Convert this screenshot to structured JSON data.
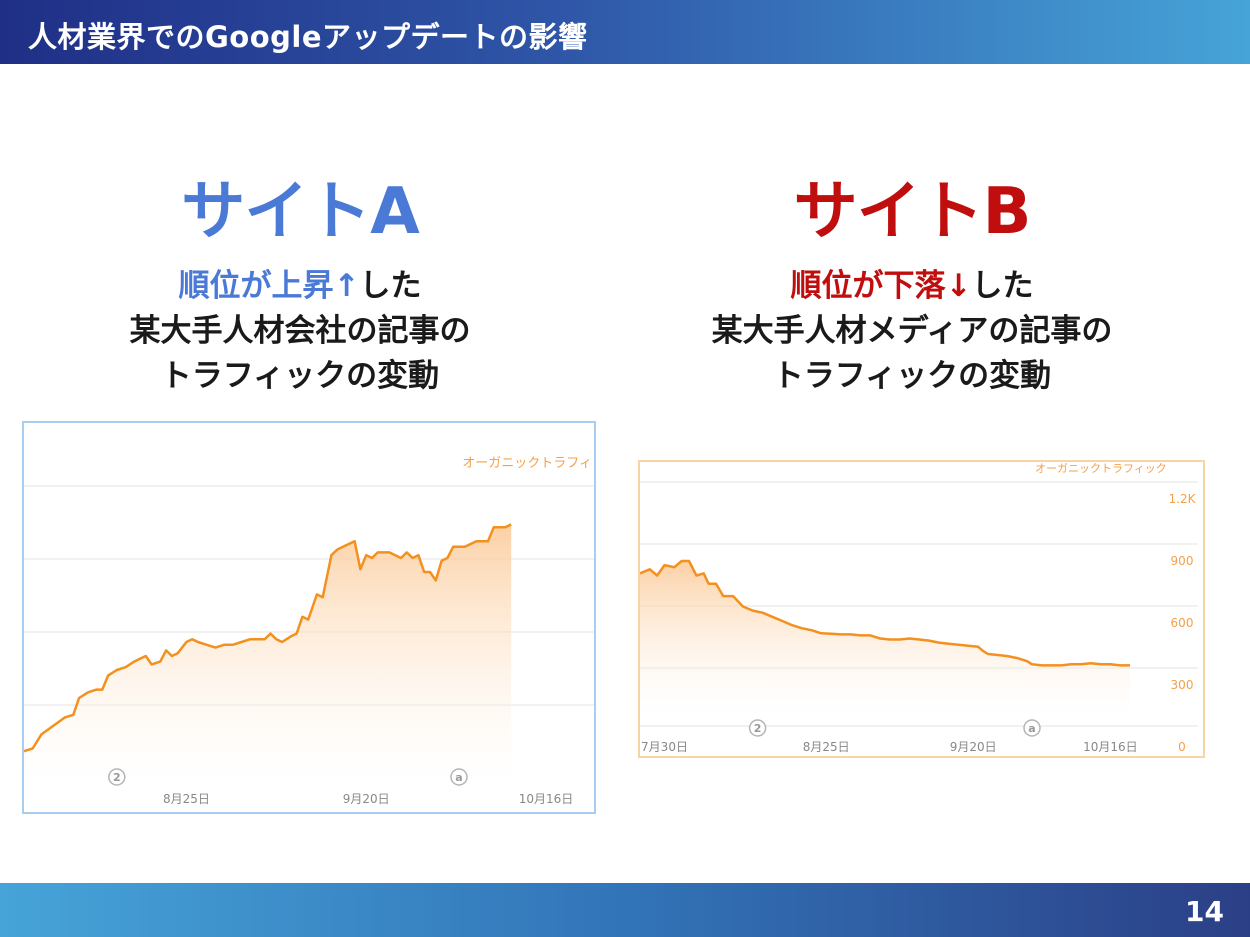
{
  "header": {
    "title": "人材業界でのGoogleアップデートの影響"
  },
  "footer": {
    "page_number": "14"
  },
  "site_a": {
    "title": "サイトA",
    "desc_highlight": "順位が上昇↑",
    "desc_rest1": "した",
    "desc_line2": "某大手人材会社の記事の",
    "desc_line3": "トラフィックの変動"
  },
  "site_b": {
    "title": "サイトB",
    "desc_highlight": "順位が下落↓",
    "desc_rest1": "した",
    "desc_line2": "某大手人材メディアの記事の",
    "desc_line3": "トラフィックの変動"
  },
  "colors": {
    "site_a_accent": "#4a79d6",
    "site_b_accent": "#c00d0d",
    "line": "#f3901e",
    "fill_top": "#fbc895",
    "label_orange": "#f3a04a",
    "axis_text": "#888888"
  },
  "chart_data": [
    {
      "type": "area",
      "legend": "オーガニックトラフィ",
      "xlim": [
        0,
        100
      ],
      "ylim": [
        0,
        100
      ],
      "x_ticks": [
        {
          "x": 28,
          "label": "8月25日"
        },
        {
          "x": 59,
          "label": "9月20日"
        },
        {
          "x": 90,
          "label": "10月16日"
        }
      ],
      "markers": [
        {
          "x": 16,
          "label": "2"
        },
        {
          "x": 75,
          "label": "a"
        }
      ],
      "values": [
        [
          0,
          6
        ],
        [
          1.5,
          7
        ],
        [
          3,
          12
        ],
        [
          5,
          15
        ],
        [
          7,
          18
        ],
        [
          8.5,
          19
        ],
        [
          9.5,
          25
        ],
        [
          11,
          27
        ],
        [
          12.5,
          28
        ],
        [
          13.5,
          28
        ],
        [
          14.5,
          33
        ],
        [
          16,
          35
        ],
        [
          17.5,
          36
        ],
        [
          19,
          38
        ],
        [
          20,
          39
        ],
        [
          21,
          40
        ],
        [
          22,
          37
        ],
        [
          23.5,
          38
        ],
        [
          24.5,
          42
        ],
        [
          25.5,
          40
        ],
        [
          26.5,
          41
        ],
        [
          28,
          45
        ],
        [
          29,
          46
        ],
        [
          30,
          45
        ],
        [
          31.5,
          44
        ],
        [
          33,
          43
        ],
        [
          34.5,
          44
        ],
        [
          36,
          44
        ],
        [
          37.5,
          45
        ],
        [
          39,
          46
        ],
        [
          40.5,
          46
        ],
        [
          41.5,
          46
        ],
        [
          42.5,
          48
        ],
        [
          43.5,
          46
        ],
        [
          44.5,
          45
        ],
        [
          46,
          47
        ],
        [
          47,
          48
        ],
        [
          48,
          54
        ],
        [
          49,
          53
        ],
        [
          50.5,
          62
        ],
        [
          51.5,
          61
        ],
        [
          53,
          76
        ],
        [
          54,
          78
        ],
        [
          55,
          79
        ],
        [
          56,
          80
        ],
        [
          57,
          81
        ],
        [
          58,
          71
        ],
        [
          59,
          76
        ],
        [
          60,
          75
        ],
        [
          61,
          77
        ],
        [
          62,
          77
        ],
        [
          63,
          77
        ],
        [
          64,
          76
        ],
        [
          65,
          75
        ],
        [
          66,
          77
        ],
        [
          67,
          75
        ],
        [
          68,
          76
        ],
        [
          69,
          70
        ],
        [
          70,
          70
        ],
        [
          71,
          67
        ],
        [
          72,
          74
        ],
        [
          73,
          75
        ],
        [
          74,
          79
        ],
        [
          75,
          79
        ],
        [
          76,
          79
        ],
        [
          77,
          80
        ],
        [
          78,
          81
        ],
        [
          79,
          81
        ],
        [
          80,
          81
        ],
        [
          81,
          86
        ],
        [
          82,
          86
        ],
        [
          83,
          86
        ],
        [
          84,
          87
        ]
      ]
    },
    {
      "type": "area",
      "legend": "オーガニックトラフィック",
      "ylim": [
        0,
        1200
      ],
      "y_ticks": [
        {
          "value": 0,
          "label": "0"
        },
        {
          "value": 300,
          "label": "300"
        },
        {
          "value": 600,
          "label": "600"
        },
        {
          "value": 900,
          "label": "900"
        },
        {
          "value": 1200,
          "label": "1.2K"
        }
      ],
      "xlim": [
        0,
        100
      ],
      "x_ticks": [
        {
          "x": 5,
          "label": "7月30日"
        },
        {
          "x": 38,
          "label": "8月25日"
        },
        {
          "x": 68,
          "label": "9月20日"
        },
        {
          "x": 96,
          "label": "10月16日"
        }
      ],
      "markers": [
        {
          "x": 24,
          "label": "2"
        },
        {
          "x": 80,
          "label": "a"
        }
      ],
      "values": [
        [
          0,
          840
        ],
        [
          2,
          860
        ],
        [
          3.5,
          830
        ],
        [
          5,
          880
        ],
        [
          7,
          870
        ],
        [
          8.5,
          900
        ],
        [
          10,
          900
        ],
        [
          11.5,
          830
        ],
        [
          13,
          840
        ],
        [
          14,
          790
        ],
        [
          15.5,
          790
        ],
        [
          17,
          730
        ],
        [
          19,
          730
        ],
        [
          21,
          680
        ],
        [
          23,
          660
        ],
        [
          25,
          650
        ],
        [
          27,
          630
        ],
        [
          29,
          610
        ],
        [
          31,
          590
        ],
        [
          33,
          575
        ],
        [
          35,
          565
        ],
        [
          37,
          550
        ],
        [
          39,
          548
        ],
        [
          41,
          545
        ],
        [
          43,
          545
        ],
        [
          45,
          540
        ],
        [
          47,
          540
        ],
        [
          49,
          525
        ],
        [
          51,
          520
        ],
        [
          53,
          520
        ],
        [
          55,
          525
        ],
        [
          57,
          520
        ],
        [
          59,
          515
        ],
        [
          61,
          505
        ],
        [
          63,
          500
        ],
        [
          65,
          495
        ],
        [
          67,
          490
        ],
        [
          69,
          485
        ],
        [
          70,
          465
        ],
        [
          71,
          450
        ],
        [
          73,
          445
        ],
        [
          75,
          440
        ],
        [
          77,
          430
        ],
        [
          79,
          415
        ],
        [
          80,
          400
        ],
        [
          82,
          395
        ],
        [
          84,
          395
        ],
        [
          86,
          395
        ],
        [
          88,
          400
        ],
        [
          90,
          400
        ],
        [
          92,
          405
        ],
        [
          94,
          400
        ],
        [
          96,
          400
        ],
        [
          98,
          395
        ],
        [
          100,
          395
        ]
      ]
    }
  ]
}
